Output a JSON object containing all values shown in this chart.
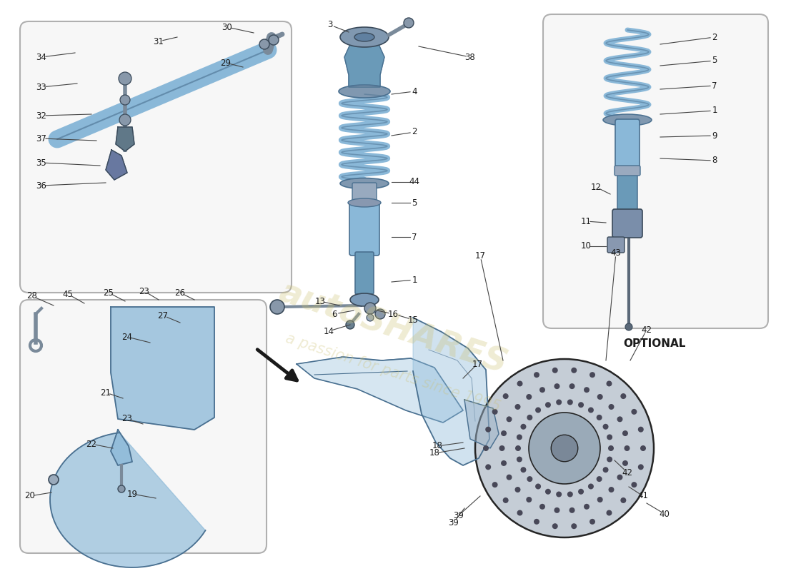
{
  "bg": "#ffffff",
  "box_bg": "#f7f7f7",
  "box_edge": "#b0b0b0",
  "blue": "#8ab8d8",
  "blue_dark": "#4a7090",
  "blue_mid": "#6a9ab8",
  "steel": "#7a8a9a",
  "steel_dark": "#3a4a5a",
  "black": "#1a1a1a",
  "wm_color": "#ccc070",
  "optional": "OPTIONAL",
  "tc": "#1a1a1a"
}
